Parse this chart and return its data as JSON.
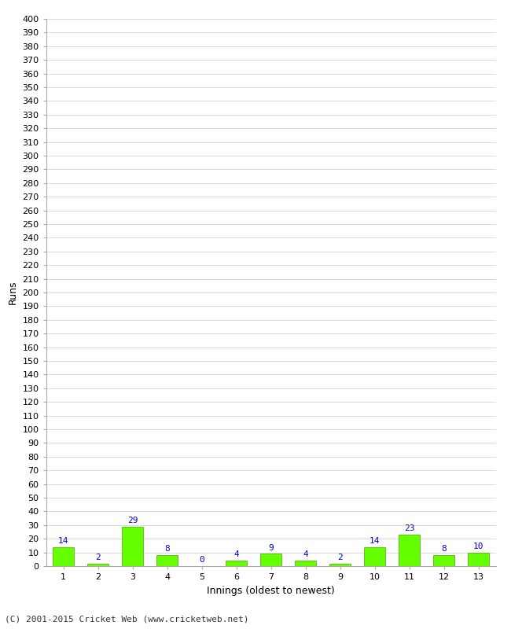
{
  "xlabel": "Innings (oldest to newest)",
  "ylabel": "Runs",
  "categories": [
    "1",
    "2",
    "3",
    "4",
    "5",
    "6",
    "7",
    "8",
    "9",
    "10",
    "11",
    "12",
    "13"
  ],
  "values": [
    14,
    2,
    29,
    8,
    0,
    4,
    9,
    4,
    2,
    14,
    23,
    8,
    10
  ],
  "bar_color": "#66ff00",
  "bar_edge_color": "#44aa00",
  "label_color": "#0000cc",
  "background_color": "#ffffff",
  "grid_color": "#cccccc",
  "ylim": [
    0,
    400
  ],
  "footer_text": "(C) 2001-2015 Cricket Web (www.cricketweb.net)",
  "label_fontsize": 8,
  "axis_label_fontsize": 9,
  "tick_fontsize": 8,
  "footer_fontsize": 8
}
